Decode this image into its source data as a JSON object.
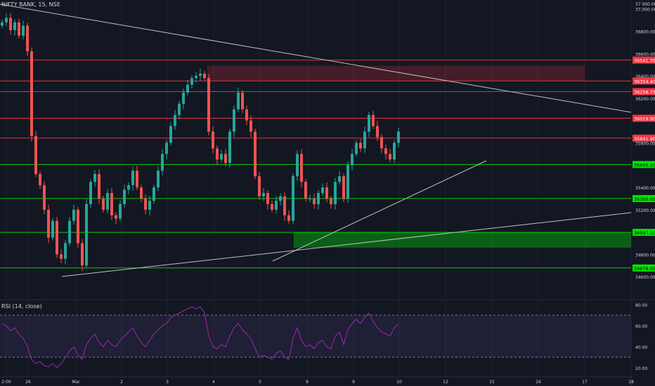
{
  "chart_data": [
    {
      "type": "candlestick",
      "title": "NIFTY BANK, 15, NSE",
      "ylim": [
        34400,
        37080
      ],
      "y_ticks": [
        "37,000.00",
        "36800.00",
        "36600.00",
        "36400.00",
        "36200.00",
        "35800.00",
        "35400.00",
        "35200.00",
        "34800.00",
        "34600.00"
      ],
      "y_ticks_top": [
        "37 000.00"
      ],
      "x_ticks": [
        "2:00",
        "26",
        "Mar",
        "2",
        "3",
        "4",
        "5",
        "8",
        "9",
        "10",
        "12",
        "15",
        "16",
        "17",
        "18"
      ],
      "price_levels": [
        {
          "value": 36541.35,
          "label": "36541.35",
          "color": "#f23645",
          "kind": "resistance"
        },
        {
          "value": 36354.4,
          "label": "36354.40",
          "color": "#f23645",
          "kind": "resistance"
        },
        {
          "value": 36258.75,
          "label": "36258.75",
          "color": "#f23645",
          "kind": "resistance"
        },
        {
          "value": 36019.9,
          "label": "36019.90",
          "color": "#f23645",
          "kind": "resistance"
        },
        {
          "value": 35841.9,
          "label": "35841.90",
          "color": "#f23645",
          "kind": "current"
        },
        {
          "value": 35605.2,
          "label": "35605.20",
          "color": "#00e600",
          "kind": "support"
        },
        {
          "value": 35300.05,
          "label": "35300.05",
          "color": "#00e600",
          "kind": "support"
        },
        {
          "value": 34997.1,
          "label": "34997.10",
          "color": "#00e600",
          "kind": "support"
        },
        {
          "value": 34678.05,
          "label": "34678.05",
          "color": "#00e600",
          "kind": "support"
        }
      ],
      "zones": [
        {
          "kind": "supply",
          "from": 36354.4,
          "to": 36490,
          "color": "#f23645"
        },
        {
          "kind": "demand",
          "from": 34860,
          "to": 34997.1,
          "color": "#00e600"
        }
      ],
      "candles": [
        36880,
        36920,
        36810,
        36880,
        36760,
        36850,
        36620,
        35860,
        35520,
        35420,
        35200,
        34950,
        35100,
        34800,
        34760,
        34900,
        35100,
        35200,
        34900,
        34700,
        35250,
        35450,
        35520,
        35300,
        35200,
        35350,
        35150,
        35120,
        35250,
        35380,
        35420,
        35550,
        35400,
        35300,
        35200,
        35280,
        35400,
        35550,
        35700,
        35800,
        35950,
        36050,
        36150,
        36250,
        36320,
        36380,
        36400,
        36420,
        36380,
        35900,
        35750,
        35650,
        35700,
        35620,
        35900,
        36100,
        36250,
        36100,
        36000,
        35900,
        35500,
        35320,
        35350,
        35250,
        35200,
        35280,
        35320,
        35150,
        35100,
        35500,
        35700,
        35450,
        35300,
        35300,
        35250,
        35350,
        35400,
        35300,
        35250,
        35450,
        35500,
        35300,
        35600,
        35700,
        35800,
        35750,
        35900,
        36050,
        35950,
        35850,
        35750,
        35700,
        35650,
        35800,
        35900
      ]
    },
    {
      "type": "line",
      "title": "RSI (14, close)",
      "ylim": [
        12,
        84
      ],
      "y_ticks": [
        "80.00",
        "60.00",
        "40.00",
        "20.00"
      ],
      "bands": [
        70,
        30
      ],
      "color": "#9c27b0",
      "values": [
        62,
        60,
        55,
        58,
        52,
        48,
        40,
        28,
        24,
        26,
        22,
        21,
        24,
        20,
        24,
        30,
        36,
        40,
        32,
        28,
        42,
        48,
        52,
        44,
        40,
        46,
        42,
        40,
        46,
        50,
        54,
        58,
        50,
        44,
        40,
        46,
        52,
        56,
        60,
        62,
        68,
        70,
        72,
        74,
        76,
        78,
        76,
        78,
        72,
        50,
        40,
        38,
        42,
        40,
        50,
        58,
        62,
        56,
        52,
        48,
        38,
        30,
        32,
        30,
        28,
        34,
        36,
        30,
        28,
        48,
        58,
        46,
        40,
        42,
        38,
        44,
        46,
        40,
        38,
        50,
        54,
        42,
        56,
        62,
        66,
        62,
        68,
        72,
        64,
        58,
        54,
        52,
        50,
        58,
        62
      ]
    }
  ],
  "colors": {
    "background": "#131722",
    "grid": "#1e222d",
    "up": "#26a69a",
    "down": "#ef5350",
    "trendline": "#c0c0c0",
    "rsi_fill": "#7e57c2",
    "axis_text": "#d1d4dc"
  }
}
